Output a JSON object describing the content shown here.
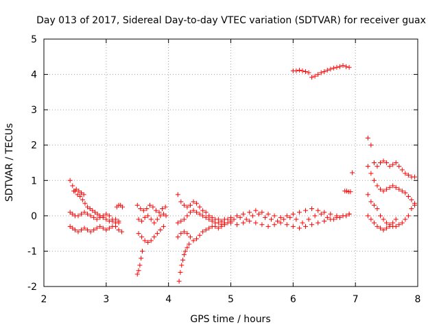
{
  "chart_data": {
    "type": "scatter",
    "title": "Day 013 of 2017, Sidereal Day-to-day VTEC variation (SDTVAR) for receiver guax",
    "xlabel": "GPS time / hours",
    "ylabel": "SDTVAR / TECUs",
    "xlim": [
      2,
      8
    ],
    "ylim": [
      -2,
      5
    ],
    "xticks": [
      "2",
      "3",
      "4",
      "5",
      "6",
      "7",
      "8"
    ],
    "yticks": [
      "-2",
      "-1",
      "0",
      "1",
      "2",
      "3",
      "4",
      "5"
    ],
    "grid": true,
    "marker": "plus",
    "color": "#ff0000",
    "series": [
      {
        "name": "seg1_upper",
        "x": [
          2.42,
          2.46,
          2.5,
          2.54,
          2.58,
          2.62,
          2.66,
          2.7,
          2.74,
          2.78,
          2.82,
          2.86,
          2.9,
          2.95,
          3.0,
          3.05,
          3.1,
          3.15,
          3.2
        ],
        "y": [
          1.0,
          0.85,
          0.7,
          0.6,
          0.55,
          0.45,
          0.35,
          0.25,
          0.2,
          0.15,
          0.1,
          0.05,
          0.0,
          -0.05,
          -0.1,
          -0.15,
          -0.15,
          -0.2,
          -0.2
        ]
      },
      {
        "name": "seg1_mid",
        "x": [
          2.42,
          2.46,
          2.5,
          2.55,
          2.6,
          2.65,
          2.7,
          2.75,
          2.8,
          2.85,
          2.9,
          2.95,
          3.0,
          3.05,
          3.1,
          3.15,
          3.2
        ],
        "y": [
          0.1,
          0.05,
          0.0,
          0.0,
          0.05,
          0.1,
          0.05,
          0.0,
          -0.05,
          -0.1,
          -0.05,
          0.0,
          0.05,
          0.0,
          -0.1,
          -0.1,
          -0.15
        ]
      },
      {
        "name": "seg1_low",
        "x": [
          2.42,
          2.46,
          2.5,
          2.55,
          2.6,
          2.65,
          2.7,
          2.75,
          2.8,
          2.85,
          2.9,
          2.95,
          3.0,
          3.05,
          3.1,
          3.15,
          3.2,
          3.25
        ],
        "y": [
          -0.3,
          -0.35,
          -0.4,
          -0.45,
          -0.4,
          -0.35,
          -0.4,
          -0.45,
          -0.4,
          -0.35,
          -0.3,
          -0.35,
          -0.4,
          -0.35,
          -0.3,
          -0.3,
          -0.4,
          -0.45
        ]
      },
      {
        "name": "seg1_bump",
        "x": [
          2.48,
          2.52,
          2.56,
          2.6,
          2.64,
          3.17,
          3.2,
          3.23,
          3.26
        ],
        "y": [
          0.7,
          0.75,
          0.7,
          0.65,
          0.6,
          0.25,
          0.3,
          0.3,
          0.25
        ]
      },
      {
        "name": "seg2_upper",
        "x": [
          3.5,
          3.55,
          3.6,
          3.65,
          3.7,
          3.75,
          3.8,
          3.85,
          3.9,
          3.95
        ],
        "y": [
          0.3,
          0.2,
          0.15,
          0.2,
          0.3,
          0.25,
          0.15,
          0.1,
          0.2,
          0.25
        ]
      },
      {
        "name": "seg2_mid",
        "x": [
          3.52,
          3.57,
          3.62,
          3.67,
          3.72,
          3.77,
          3.82,
          3.87,
          3.92,
          3.96
        ],
        "y": [
          -0.1,
          -0.15,
          -0.05,
          0.0,
          -0.1,
          -0.2,
          -0.1,
          0.0,
          0.05,
          0.0
        ]
      },
      {
        "name": "seg2_low",
        "x": [
          3.52,
          3.57,
          3.62,
          3.67,
          3.72,
          3.77,
          3.82,
          3.87,
          3.92
        ],
        "y": [
          -0.5,
          -0.6,
          -0.7,
          -0.75,
          -0.7,
          -0.6,
          -0.5,
          -0.4,
          -0.3
        ]
      },
      {
        "name": "seg2_drop",
        "x": [
          3.5,
          3.52,
          3.54,
          3.56,
          3.58
        ],
        "y": [
          -1.65,
          -1.55,
          -1.4,
          -1.2,
          -1.0
        ]
      },
      {
        "name": "seg3_upper",
        "x": [
          4.15,
          4.2,
          4.25,
          4.3,
          4.35,
          4.4,
          4.45,
          4.5,
          4.55,
          4.6,
          4.65,
          4.7,
          4.75,
          4.8,
          4.85,
          4.9,
          4.95,
          5.0
        ],
        "y": [
          0.6,
          0.4,
          0.3,
          0.25,
          0.3,
          0.4,
          0.35,
          0.25,
          0.15,
          0.1,
          0.0,
          -0.05,
          -0.1,
          -0.1,
          -0.15,
          -0.1,
          -0.1,
          -0.1
        ]
      },
      {
        "name": "seg3_mid",
        "x": [
          4.15,
          4.2,
          4.25,
          4.3,
          4.35,
          4.4,
          4.45,
          4.5,
          4.55,
          4.6,
          4.65,
          4.7,
          4.75,
          4.8,
          4.85,
          4.9,
          4.95,
          5.0
        ],
        "y": [
          -0.2,
          -0.15,
          -0.1,
          0.0,
          0.1,
          0.15,
          0.1,
          0.05,
          0.0,
          -0.05,
          -0.1,
          -0.15,
          -0.2,
          -0.2,
          -0.25,
          -0.2,
          -0.2,
          -0.15
        ]
      },
      {
        "name": "seg3_low",
        "x": [
          4.15,
          4.2,
          4.25,
          4.3,
          4.35,
          4.4,
          4.45,
          4.5,
          4.55,
          4.6,
          4.65,
          4.7,
          4.75,
          4.8,
          4.85,
          4.9
        ],
        "y": [
          -0.6,
          -0.5,
          -0.45,
          -0.5,
          -0.6,
          -0.7,
          -0.65,
          -0.55,
          -0.45,
          -0.4,
          -0.35,
          -0.3,
          -0.3,
          -0.35,
          -0.3,
          -0.25
        ]
      },
      {
        "name": "seg3_drop",
        "x": [
          4.17,
          4.19,
          4.21,
          4.23,
          4.25,
          4.27,
          4.3,
          4.33
        ],
        "y": [
          -1.85,
          -1.6,
          -1.4,
          -1.25,
          -1.1,
          -1.0,
          -0.9,
          -0.8
        ]
      },
      {
        "name": "seg4_a",
        "x": [
          5.0,
          5.1,
          5.2,
          5.3,
          5.4,
          5.5,
          5.6,
          5.7,
          5.8,
          5.9,
          6.0,
          6.1,
          6.2,
          6.3,
          6.4,
          6.5,
          6.6,
          6.7,
          6.8,
          6.9
        ],
        "y": [
          -0.05,
          0.0,
          0.05,
          0.1,
          0.15,
          0.1,
          0.05,
          0.0,
          -0.05,
          0.0,
          0.05,
          0.1,
          0.15,
          0.2,
          0.15,
          0.1,
          0.05,
          0.0,
          0.0,
          0.05
        ]
      },
      {
        "name": "seg4_b",
        "x": [
          5.0,
          5.1,
          5.2,
          5.3,
          5.4,
          5.5,
          5.6,
          5.7,
          5.8,
          5.9,
          6.0,
          6.1,
          6.2,
          6.3,
          6.4,
          6.5,
          6.6,
          6.7,
          6.8,
          6.9
        ],
        "y": [
          -0.2,
          -0.25,
          -0.2,
          -0.15,
          -0.2,
          -0.25,
          -0.3,
          -0.25,
          -0.2,
          -0.25,
          -0.3,
          -0.35,
          -0.3,
          -0.25,
          -0.2,
          -0.15,
          -0.1,
          -0.05,
          0.0,
          0.05
        ]
      },
      {
        "name": "seg4_c",
        "x": [
          5.05,
          5.15,
          5.25,
          5.35,
          5.45,
          5.55,
          5.65,
          5.75,
          5.85,
          5.95,
          6.05,
          6.15,
          6.25,
          6.35,
          6.45,
          6.55,
          6.65,
          6.75,
          6.85
        ],
        "y": [
          -0.1,
          -0.05,
          -0.1,
          0.0,
          0.05,
          -0.05,
          -0.1,
          -0.15,
          -0.1,
          -0.05,
          -0.1,
          -0.2,
          -0.1,
          0.0,
          0.05,
          -0.05,
          -0.1,
          -0.05,
          0.0
        ]
      },
      {
        "name": "seg5_high",
        "x": [
          6.0,
          6.05,
          6.1,
          6.15,
          6.2,
          6.25,
          6.3,
          6.35,
          6.4,
          6.45,
          6.5,
          6.55,
          6.6,
          6.65,
          6.7,
          6.75,
          6.8,
          6.85,
          6.9
        ],
        "y": [
          4.1,
          4.1,
          4.12,
          4.1,
          4.08,
          4.05,
          3.92,
          3.95,
          4.0,
          4.05,
          4.08,
          4.12,
          4.15,
          4.18,
          4.2,
          4.22,
          4.25,
          4.22,
          4.2
        ]
      },
      {
        "name": "seg5_iso",
        "x": [
          6.83,
          6.86,
          6.89,
          6.92,
          6.95
        ],
        "y": [
          0.7,
          0.7,
          0.68,
          0.68,
          1.22
        ]
      },
      {
        "name": "seg6_upper",
        "x": [
          7.2,
          7.25,
          7.3,
          7.35,
          7.4,
          7.45,
          7.5,
          7.55,
          7.6,
          7.65,
          7.7,
          7.75,
          7.8,
          7.85,
          7.9,
          7.95
        ],
        "y": [
          2.2,
          2.0,
          1.5,
          1.4,
          1.5,
          1.55,
          1.5,
          1.4,
          1.45,
          1.5,
          1.4,
          1.3,
          1.2,
          1.15,
          1.1,
          1.1
        ]
      },
      {
        "name": "seg6_mid",
        "x": [
          7.2,
          7.25,
          7.3,
          7.35,
          7.4,
          7.45,
          7.5,
          7.55,
          7.6,
          7.65,
          7.7,
          7.75,
          7.8,
          7.85,
          7.9,
          7.95
        ],
        "y": [
          1.4,
          1.2,
          1.0,
          0.85,
          0.75,
          0.7,
          0.75,
          0.8,
          0.85,
          0.8,
          0.75,
          0.7,
          0.65,
          0.55,
          0.45,
          0.35
        ]
      },
      {
        "name": "seg6_low",
        "x": [
          7.2,
          7.25,
          7.3,
          7.35,
          7.4,
          7.45,
          7.5,
          7.55,
          7.6,
          7.65,
          7.7,
          7.75,
          7.8,
          7.85,
          7.9,
          7.95
        ],
        "y": [
          0.6,
          0.4,
          0.3,
          0.2,
          0.0,
          -0.1,
          -0.2,
          -0.25,
          -0.3,
          -0.3,
          -0.25,
          -0.2,
          -0.1,
          0.0,
          0.2,
          0.3
        ]
      },
      {
        "name": "seg6_bottom",
        "x": [
          7.2,
          7.25,
          7.3,
          7.35,
          7.4,
          7.45,
          7.5,
          7.55,
          7.6,
          7.65
        ],
        "y": [
          0.0,
          -0.1,
          -0.2,
          -0.3,
          -0.35,
          -0.4,
          -0.35,
          -0.3,
          -0.2,
          -0.1
        ]
      }
    ]
  }
}
